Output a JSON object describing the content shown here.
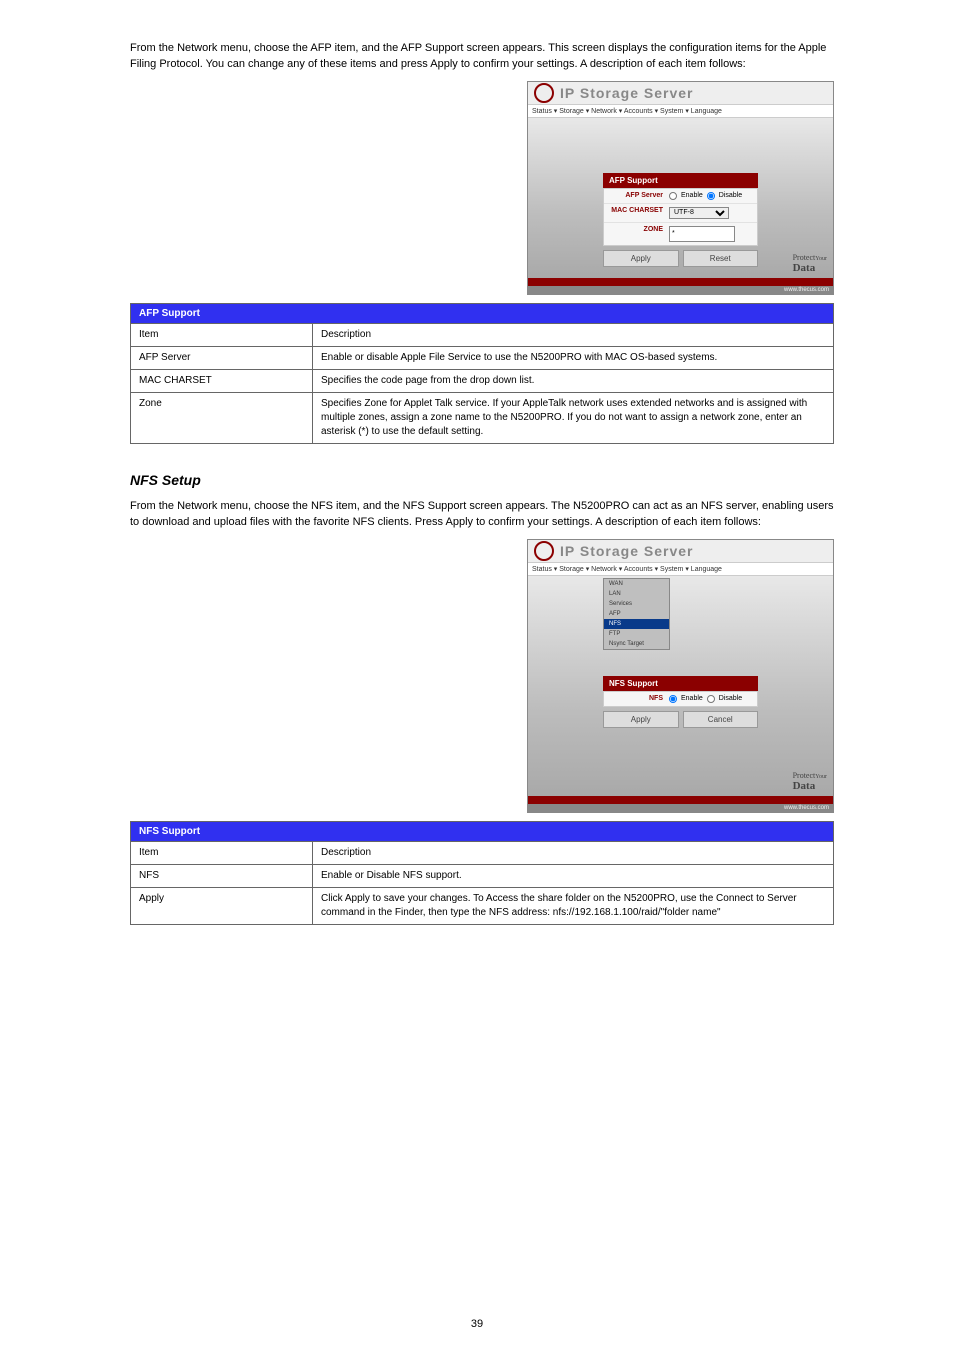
{
  "page_number": "39",
  "shots": {
    "app_title": "IP Storage Server",
    "menu": "Status ▾   Storage ▾   Network ▾   Accounts ▾   System ▾   Language",
    "apply": "Apply",
    "reset": "Reset",
    "cancel": "Cancel",
    "url": "www.thecus.com"
  },
  "afp": {
    "intro": "From the Network menu, choose the AFP item, and the AFP Support screen appears. This screen displays the configuration items for the Apple Filing Protocol. You can change any of these items and press Apply to confirm your settings. A description of each item follows:",
    "panel": {
      "title": "AFP Support",
      "row1": {
        "label": "AFP Server",
        "opt1": "Enable",
        "opt2": "Disable"
      },
      "row2": {
        "label": "MAC CHARSET",
        "value": "UTF-8"
      },
      "row3": {
        "label": "ZONE",
        "value": "*"
      }
    },
    "table": {
      "title": "AFP Support",
      "col1": "Item",
      "col2": "Description",
      "rows": [
        [
          "AFP Server",
          "Enable or disable Apple File Service to use the N5200PRO with MAC OS-based systems."
        ],
        [
          "MAC CHARSET",
          "Specifies the code page from the drop down list."
        ],
        [
          "Zone",
          "Specifies Zone for Applet Talk service.\nIf your AppleTalk network uses extended networks and is assigned with multiple zones, assign a zone name to the N5200PRO. If you do not want to assign a network zone, enter an asterisk (*) to use the default setting."
        ]
      ]
    }
  },
  "nfs": {
    "heading": "NFS Setup",
    "intro": "From the Network menu, choose the NFS item, and the NFS Support screen appears. The N5200PRO can act as an NFS server, enabling users to download and upload files with the favorite NFS clients. Press Apply to confirm your settings. A description of each item follows:",
    "submenu": [
      "WAN",
      "LAN",
      "Services",
      "AFP",
      "NFS",
      "FTP",
      "Nsync Target"
    ],
    "panel": {
      "title": "NFS Support",
      "row1": {
        "label": "NFS",
        "opt1": "Enable",
        "opt2": "Disable"
      }
    },
    "table": {
      "title": "NFS Support",
      "col1": "Item",
      "col2": "Description",
      "rows": [
        [
          "NFS",
          "Enable or Disable NFS support."
        ],
        [
          "Apply",
          "Click Apply to save your changes.\nTo Access the share folder on the N5200PRO, use the Connect to Server command in the Finder, then type the NFS address:\nnfs://192.168.1.100/raid/\"folder name\""
        ]
      ]
    }
  },
  "colors": {
    "table_header_bg": "#3030f0",
    "table_header_fg": "#ffffff",
    "panel_header_bg": "#8b0000",
    "panel_header_fg": "#ffffff",
    "body_gradient_from": "#e8e8e8",
    "body_gradient_to": "#a9a9a9",
    "submenu_hl_bg": "#083a8a"
  }
}
